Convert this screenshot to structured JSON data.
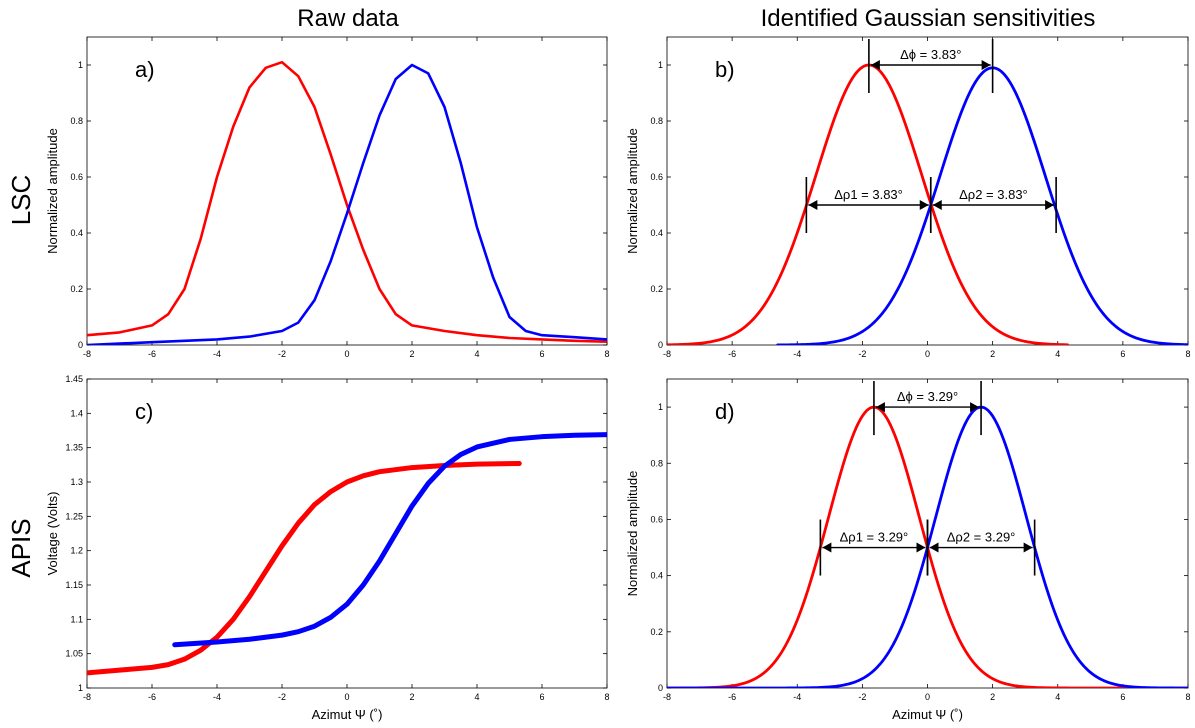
{
  "column_titles": [
    "Raw data",
    "Identified Gaussian sensitivities"
  ],
  "row_titles": [
    "LSC",
    "APIS"
  ],
  "colors": {
    "red": "#ff0000",
    "blue": "#0000ff",
    "axis": "#000000"
  },
  "chart_data": [
    {
      "id": "a",
      "panel_label": "a)",
      "type": "line",
      "xlabel": "",
      "ylabel": "Normalized amplitude",
      "xlim": [
        -8,
        8
      ],
      "ylim": [
        0,
        1.1
      ],
      "xticks": [
        "-8",
        "-6",
        "-4",
        "-2",
        "0",
        "2",
        "4",
        "6",
        "8"
      ],
      "yticks": [
        "0",
        "0.2",
        "0.4",
        "0.6",
        "0.8",
        "1"
      ],
      "series": [
        {
          "color": "#ff0000",
          "x": [
            -8,
            -7,
            -6,
            -5.5,
            -5,
            -4.5,
            -4,
            -3.5,
            -3,
            -2.5,
            -2,
            -1.5,
            -1,
            -0.5,
            0,
            0.5,
            1,
            1.5,
            2,
            3,
            4,
            5,
            6,
            7,
            8
          ],
          "y": [
            0.035,
            0.045,
            0.07,
            0.11,
            0.2,
            0.38,
            0.6,
            0.78,
            0.92,
            0.99,
            1.01,
            0.96,
            0.85,
            0.68,
            0.5,
            0.34,
            0.2,
            0.11,
            0.07,
            0.05,
            0.035,
            0.025,
            0.02,
            0.015,
            0.012
          ]
        },
        {
          "color": "#0000ff",
          "x": [
            -8,
            -7,
            -6,
            -5,
            -4,
            -3,
            -2,
            -1.5,
            -1,
            -0.5,
            0,
            0.5,
            1,
            1.5,
            2,
            2.5,
            3,
            3.5,
            4,
            4.5,
            5,
            5.5,
            6,
            7,
            8
          ],
          "y": [
            0.0,
            0.005,
            0.01,
            0.015,
            0.02,
            0.03,
            0.05,
            0.08,
            0.16,
            0.3,
            0.47,
            0.65,
            0.82,
            0.95,
            1.0,
            0.97,
            0.85,
            0.65,
            0.42,
            0.24,
            0.1,
            0.05,
            0.035,
            0.028,
            0.02
          ]
        }
      ]
    },
    {
      "id": "b",
      "panel_label": "b)",
      "type": "line",
      "xlabel": "",
      "ylabel": "Normalized amplitude",
      "xlim": [
        -8,
        8
      ],
      "ylim": [
        0,
        1.1
      ],
      "xticks": [
        "-8",
        "-6",
        "-4",
        "-2",
        "0",
        "2",
        "4",
        "6",
        "8"
      ],
      "yticks": [
        "0",
        "0.2",
        "0.4",
        "0.6",
        "0.8",
        "1"
      ],
      "series": [
        {
          "color": "#ff0000",
          "model": "gaussian",
          "center": -1.8,
          "peak": 1.0,
          "half_width_at_half_max": 1.915,
          "x_range": [
            -8,
            4.3
          ]
        },
        {
          "color": "#0000ff",
          "model": "gaussian",
          "center": 2.0,
          "peak": 0.99,
          "half_width_at_half_max": 1.915,
          "x_range": [
            -4.6,
            8
          ]
        }
      ],
      "annotations": [
        {
          "text": "Δϕ = 3.83°",
          "x1": -1.8,
          "x2": 2.0,
          "y": 1.0
        },
        {
          "text": "Δρ1 = 3.83°",
          "x1": -3.72,
          "x2": 0.1,
          "y": 0.5
        },
        {
          "text": "Δρ2 = 3.83°",
          "x1": 0.1,
          "x2": 3.95,
          "y": 0.5
        }
      ]
    },
    {
      "id": "c",
      "panel_label": "c)",
      "type": "line",
      "xlabel": "Azimut Ψ (˚)",
      "ylabel": "Voltage (Volts)",
      "xlim": [
        -8,
        8
      ],
      "ylim": [
        1,
        1.45
      ],
      "xticks": [
        "-8",
        "-6",
        "-4",
        "-2",
        "0",
        "2",
        "4",
        "6",
        "8"
      ],
      "yticks": [
        "1",
        "1.05",
        "1.1",
        "1.15",
        "1.2",
        "1.25",
        "1.3",
        "1.35",
        "1.4",
        "1.45"
      ],
      "series": [
        {
          "color": "#ff0000",
          "x": [
            -8,
            -7,
            -6,
            -5.5,
            -5,
            -4.5,
            -4,
            -3.5,
            -3,
            -2.5,
            -2,
            -1.5,
            -1,
            -0.5,
            0,
            0.5,
            1,
            2,
            3,
            4,
            5.3
          ],
          "y": [
            1.022,
            1.026,
            1.03,
            1.034,
            1.042,
            1.055,
            1.074,
            1.1,
            1.133,
            1.17,
            1.207,
            1.24,
            1.267,
            1.286,
            1.3,
            1.309,
            1.315,
            1.321,
            1.324,
            1.326,
            1.327
          ]
        },
        {
          "color": "#0000ff",
          "x": [
            -5.3,
            -4,
            -3,
            -2,
            -1.5,
            -1,
            -0.5,
            0,
            0.5,
            1,
            1.5,
            2,
            2.5,
            3,
            3.5,
            4,
            5,
            6,
            7,
            8
          ],
          "y": [
            1.063,
            1.067,
            1.071,
            1.077,
            1.082,
            1.09,
            1.103,
            1.122,
            1.15,
            1.185,
            1.225,
            1.265,
            1.298,
            1.323,
            1.34,
            1.351,
            1.362,
            1.366,
            1.368,
            1.369
          ]
        }
      ]
    },
    {
      "id": "d",
      "panel_label": "d)",
      "type": "line",
      "xlabel": "Azimut Ψ (˚)",
      "ylabel": "Normalized amplitude",
      "xlim": [
        -8,
        8
      ],
      "ylim": [
        0,
        1.1
      ],
      "xticks": [
        "-8",
        "-6",
        "-4",
        "-2",
        "0",
        "2",
        "4",
        "6",
        "8"
      ],
      "yticks": [
        "0",
        "0.2",
        "0.4",
        "0.6",
        "0.8",
        "1"
      ],
      "series": [
        {
          "color": "#ff0000",
          "model": "gaussian",
          "center": -1.645,
          "peak": 1.0,
          "half_width_at_half_max": 1.645,
          "x_range": [
            -8,
            8
          ]
        },
        {
          "color": "#0000ff",
          "model": "gaussian",
          "center": 1.645,
          "peak": 1.0,
          "half_width_at_half_max": 1.645,
          "x_range": [
            -8,
            8
          ]
        }
      ],
      "annotations": [
        {
          "text": "Δϕ = 3.29°",
          "x1": -1.645,
          "x2": 1.645,
          "y": 1.0
        },
        {
          "text": "Δρ1 = 3.29°",
          "x1": -3.29,
          "x2": 0,
          "y": 0.5
        },
        {
          "text": "Δρ2 = 3.29°",
          "x1": 0,
          "x2": 3.29,
          "y": 0.5
        }
      ]
    }
  ]
}
